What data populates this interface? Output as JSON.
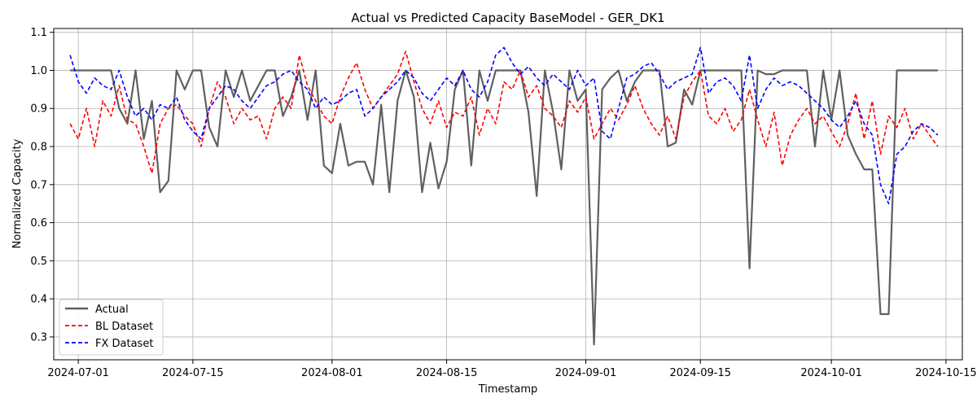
{
  "chart_data": {
    "type": "line",
    "title": "Actual vs Predicted Capacity BaseModel - GER_DK1",
    "xlabel": "Timestamp",
    "ylabel": "Normalized Capacity",
    "xlim": [
      "2024-06-28",
      "2024-10-17"
    ],
    "ylim": [
      0.24,
      1.11
    ],
    "x_ticks": [
      "2024-07-01",
      "2024-07-15",
      "2024-08-01",
      "2024-08-15",
      "2024-09-01",
      "2024-09-15",
      "2024-10-01",
      "2024-10-15"
    ],
    "y_ticks": [
      0.3,
      0.4,
      0.5,
      0.6,
      0.7,
      0.8,
      0.9,
      1.0,
      1.1
    ],
    "grid": true,
    "legend_position": "lower-left",
    "series": [
      {
        "name": "Actual",
        "color": "#606060",
        "style": "solid",
        "x": [
          "2024-06-30",
          "2024-07-03",
          "2024-07-05",
          "2024-07-06",
          "2024-07-07",
          "2024-07-08",
          "2024-07-09",
          "2024-07-10",
          "2024-07-11",
          "2024-07-12",
          "2024-07-13",
          "2024-07-14",
          "2024-07-15",
          "2024-07-16",
          "2024-07-17",
          "2024-07-18",
          "2024-07-19",
          "2024-07-20",
          "2024-07-21",
          "2024-07-22",
          "2024-07-23",
          "2024-07-24",
          "2024-07-25",
          "2024-07-26",
          "2024-07-27",
          "2024-07-28",
          "2024-07-29",
          "2024-07-30",
          "2024-07-31",
          "2024-08-01",
          "2024-08-02",
          "2024-08-03",
          "2024-08-04",
          "2024-08-05",
          "2024-08-06",
          "2024-08-07",
          "2024-08-08",
          "2024-08-09",
          "2024-08-10",
          "2024-08-11",
          "2024-08-12",
          "2024-08-13",
          "2024-08-14",
          "2024-08-15",
          "2024-08-16",
          "2024-08-17",
          "2024-08-18",
          "2024-08-19",
          "2024-08-20",
          "2024-08-21",
          "2024-08-22",
          "2024-08-23",
          "2024-08-24",
          "2024-08-25",
          "2024-08-26",
          "2024-08-27",
          "2024-08-28",
          "2024-08-29",
          "2024-08-30",
          "2024-08-31",
          "2024-09-01",
          "2024-09-02",
          "2024-09-03",
          "2024-09-04",
          "2024-09-05",
          "2024-09-06",
          "2024-09-07",
          "2024-09-08",
          "2024-09-09",
          "2024-09-10",
          "2024-09-11",
          "2024-09-12",
          "2024-09-13",
          "2024-09-14",
          "2024-09-15",
          "2024-09-16",
          "2024-09-17",
          "2024-09-18",
          "2024-09-19",
          "2024-09-20",
          "2024-09-21",
          "2024-09-22",
          "2024-09-23",
          "2024-09-24",
          "2024-09-25",
          "2024-09-26",
          "2024-09-27",
          "2024-09-28",
          "2024-09-29",
          "2024-09-30",
          "2024-10-01",
          "2024-10-02",
          "2024-10-03",
          "2024-10-04",
          "2024-10-05",
          "2024-10-06",
          "2024-10-07",
          "2024-10-08",
          "2024-10-09",
          "2024-10-10",
          "2024-10-11",
          "2024-10-12",
          "2024-10-13",
          "2024-10-14"
        ],
        "values": [
          1.0,
          1.0,
          1.0,
          0.9,
          0.86,
          1.0,
          0.82,
          0.92,
          0.68,
          0.71,
          1.0,
          0.95,
          1.0,
          1.0,
          0.85,
          0.8,
          1.0,
          0.93,
          1.0,
          0.92,
          0.96,
          1.0,
          1.0,
          0.88,
          0.93,
          1.0,
          0.87,
          1.0,
          0.75,
          0.73,
          0.86,
          0.75,
          0.76,
          0.76,
          0.7,
          0.91,
          0.68,
          0.92,
          1.0,
          0.93,
          0.68,
          0.81,
          0.69,
          0.76,
          0.95,
          1.0,
          0.75,
          1.0,
          0.92,
          1.0,
          1.0,
          1.0,
          1.0,
          0.89,
          0.67,
          1.0,
          0.89,
          0.74,
          1.0,
          0.92,
          0.95,
          0.28,
          0.95,
          0.98,
          1.0,
          0.92,
          0.97,
          1.0,
          1.0,
          1.0,
          0.8,
          0.81,
          0.95,
          0.91,
          1.0,
          1.0,
          1.0,
          1.0,
          1.0,
          1.0,
          0.48,
          1.0,
          0.99,
          0.99,
          1.0,
          1.0,
          1.0,
          1.0,
          0.8,
          1.0,
          0.87,
          1.0,
          0.83,
          0.78,
          0.74,
          0.74,
          0.36,
          0.36,
          1.0,
          1.0,
          1.0,
          1.0,
          1.0,
          1.0
        ]
      },
      {
        "name": "BL Dataset",
        "color": "#ff0000",
        "style": "dashed",
        "x": [
          "2024-06-30",
          "2024-07-01",
          "2024-07-02",
          "2024-07-03",
          "2024-07-04",
          "2024-07-05",
          "2024-07-06",
          "2024-07-07",
          "2024-07-08",
          "2024-07-09",
          "2024-07-10",
          "2024-07-11",
          "2024-07-12",
          "2024-07-13",
          "2024-07-14",
          "2024-07-15",
          "2024-07-16",
          "2024-07-17",
          "2024-07-18",
          "2024-07-19",
          "2024-07-20",
          "2024-07-21",
          "2024-07-22",
          "2024-07-23",
          "2024-07-24",
          "2024-07-25",
          "2024-07-26",
          "2024-07-27",
          "2024-07-28",
          "2024-07-29",
          "2024-07-30",
          "2024-07-31",
          "2024-08-01",
          "2024-08-02",
          "2024-08-03",
          "2024-08-04",
          "2024-08-05",
          "2024-08-06",
          "2024-08-07",
          "2024-08-08",
          "2024-08-09",
          "2024-08-10",
          "2024-08-11",
          "2024-08-12",
          "2024-08-13",
          "2024-08-14",
          "2024-08-15",
          "2024-08-16",
          "2024-08-17",
          "2024-08-18",
          "2024-08-19",
          "2024-08-20",
          "2024-08-21",
          "2024-08-22",
          "2024-08-23",
          "2024-08-24",
          "2024-08-25",
          "2024-08-26",
          "2024-08-27",
          "2024-08-28",
          "2024-08-29",
          "2024-08-30",
          "2024-08-31",
          "2024-09-01",
          "2024-09-02",
          "2024-09-03",
          "2024-09-04",
          "2024-09-05",
          "2024-09-06",
          "2024-09-07",
          "2024-09-08",
          "2024-09-09",
          "2024-09-10",
          "2024-09-11",
          "2024-09-12",
          "2024-09-13",
          "2024-09-14",
          "2024-09-15",
          "2024-09-16",
          "2024-09-17",
          "2024-09-18",
          "2024-09-19",
          "2024-09-20",
          "2024-09-21",
          "2024-09-22",
          "2024-09-23",
          "2024-09-24",
          "2024-09-25",
          "2024-09-26",
          "2024-09-27",
          "2024-09-28",
          "2024-09-29",
          "2024-09-30",
          "2024-10-01",
          "2024-10-02",
          "2024-10-03",
          "2024-10-04",
          "2024-10-05",
          "2024-10-06",
          "2024-10-07",
          "2024-10-08",
          "2024-10-09",
          "2024-10-10",
          "2024-10-11",
          "2024-10-12",
          "2024-10-13",
          "2024-10-14"
        ],
        "values": [
          0.86,
          0.82,
          0.9,
          0.8,
          0.92,
          0.88,
          0.96,
          0.87,
          0.86,
          0.8,
          0.73,
          0.86,
          0.9,
          0.91,
          0.88,
          0.86,
          0.8,
          0.9,
          0.97,
          0.93,
          0.86,
          0.9,
          0.87,
          0.88,
          0.82,
          0.9,
          0.93,
          0.9,
          1.04,
          0.96,
          0.92,
          0.88,
          0.86,
          0.93,
          0.98,
          1.02,
          0.95,
          0.9,
          0.93,
          0.96,
          0.99,
          1.05,
          0.97,
          0.9,
          0.86,
          0.92,
          0.85,
          0.89,
          0.88,
          0.93,
          0.83,
          0.9,
          0.86,
          0.97,
          0.95,
          1.0,
          0.93,
          0.96,
          0.9,
          0.88,
          0.85,
          0.92,
          0.89,
          0.93,
          0.82,
          0.86,
          0.9,
          0.87,
          0.91,
          0.96,
          0.9,
          0.86,
          0.83,
          0.88,
          0.82,
          0.93,
          0.97,
          1.0,
          0.88,
          0.86,
          0.9,
          0.84,
          0.87,
          0.95,
          0.87,
          0.8,
          0.89,
          0.75,
          0.83,
          0.87,
          0.9,
          0.86,
          0.88,
          0.84,
          0.8,
          0.86,
          0.94,
          0.82,
          0.92,
          0.78,
          0.88,
          0.85,
          0.9,
          0.82,
          0.86,
          0.83,
          0.8
        ]
      },
      {
        "name": "FX Dataset",
        "color": "#0000ff",
        "style": "dashed",
        "x": [
          "2024-06-30",
          "2024-07-01",
          "2024-07-02",
          "2024-07-03",
          "2024-07-04",
          "2024-07-05",
          "2024-07-06",
          "2024-07-07",
          "2024-07-08",
          "2024-07-09",
          "2024-07-10",
          "2024-07-11",
          "2024-07-12",
          "2024-07-13",
          "2024-07-14",
          "2024-07-15",
          "2024-07-16",
          "2024-07-17",
          "2024-07-18",
          "2024-07-19",
          "2024-07-20",
          "2024-07-21",
          "2024-07-22",
          "2024-07-23",
          "2024-07-24",
          "2024-07-25",
          "2024-07-26",
          "2024-07-27",
          "2024-07-28",
          "2024-07-29",
          "2024-07-30",
          "2024-07-31",
          "2024-08-01",
          "2024-08-02",
          "2024-08-03",
          "2024-08-04",
          "2024-08-05",
          "2024-08-06",
          "2024-08-07",
          "2024-08-08",
          "2024-08-09",
          "2024-08-10",
          "2024-08-11",
          "2024-08-12",
          "2024-08-13",
          "2024-08-14",
          "2024-08-15",
          "2024-08-16",
          "2024-08-17",
          "2024-08-18",
          "2024-08-19",
          "2024-08-20",
          "2024-08-21",
          "2024-08-22",
          "2024-08-23",
          "2024-08-24",
          "2024-08-25",
          "2024-08-26",
          "2024-08-27",
          "2024-08-28",
          "2024-08-29",
          "2024-08-30",
          "2024-08-31",
          "2024-09-01",
          "2024-09-02",
          "2024-09-03",
          "2024-09-04",
          "2024-09-05",
          "2024-09-06",
          "2024-09-07",
          "2024-09-08",
          "2024-09-09",
          "2024-09-10",
          "2024-09-11",
          "2024-09-12",
          "2024-09-13",
          "2024-09-14",
          "2024-09-15",
          "2024-09-16",
          "2024-09-17",
          "2024-09-18",
          "2024-09-19",
          "2024-09-20",
          "2024-09-21",
          "2024-09-22",
          "2024-09-23",
          "2024-09-24",
          "2024-09-25",
          "2024-09-26",
          "2024-09-27",
          "2024-09-28",
          "2024-09-29",
          "2024-09-30",
          "2024-10-01",
          "2024-10-02",
          "2024-10-03",
          "2024-10-04",
          "2024-10-05",
          "2024-10-06",
          "2024-10-07",
          "2024-10-08",
          "2024-10-09",
          "2024-10-10",
          "2024-10-11",
          "2024-10-12",
          "2024-10-13",
          "2024-10-14"
        ],
        "values": [
          1.04,
          0.97,
          0.94,
          0.98,
          0.96,
          0.95,
          1.0,
          0.93,
          0.88,
          0.9,
          0.87,
          0.91,
          0.9,
          0.93,
          0.87,
          0.84,
          0.82,
          0.9,
          0.93,
          0.96,
          0.95,
          0.92,
          0.9,
          0.93,
          0.96,
          0.97,
          0.99,
          1.0,
          0.97,
          0.95,
          0.9,
          0.93,
          0.91,
          0.92,
          0.94,
          0.95,
          0.88,
          0.9,
          0.93,
          0.95,
          0.97,
          1.0,
          0.98,
          0.94,
          0.92,
          0.95,
          0.98,
          0.96,
          1.0,
          0.95,
          0.93,
          0.97,
          1.04,
          1.06,
          1.02,
          0.99,
          1.01,
          0.98,
          0.96,
          0.99,
          0.97,
          0.95,
          1.0,
          0.96,
          0.98,
          0.84,
          0.82,
          0.9,
          0.98,
          0.99,
          1.01,
          1.02,
          0.99,
          0.95,
          0.97,
          0.98,
          0.99,
          1.06,
          0.94,
          0.97,
          0.98,
          0.96,
          0.92,
          1.04,
          0.9,
          0.95,
          0.98,
          0.96,
          0.97,
          0.96,
          0.94,
          0.92,
          0.9,
          0.87,
          0.85,
          0.88,
          0.92,
          0.86,
          0.83,
          0.7,
          0.65,
          0.78,
          0.8,
          0.84,
          0.86,
          0.85,
          0.83
        ]
      }
    ]
  }
}
